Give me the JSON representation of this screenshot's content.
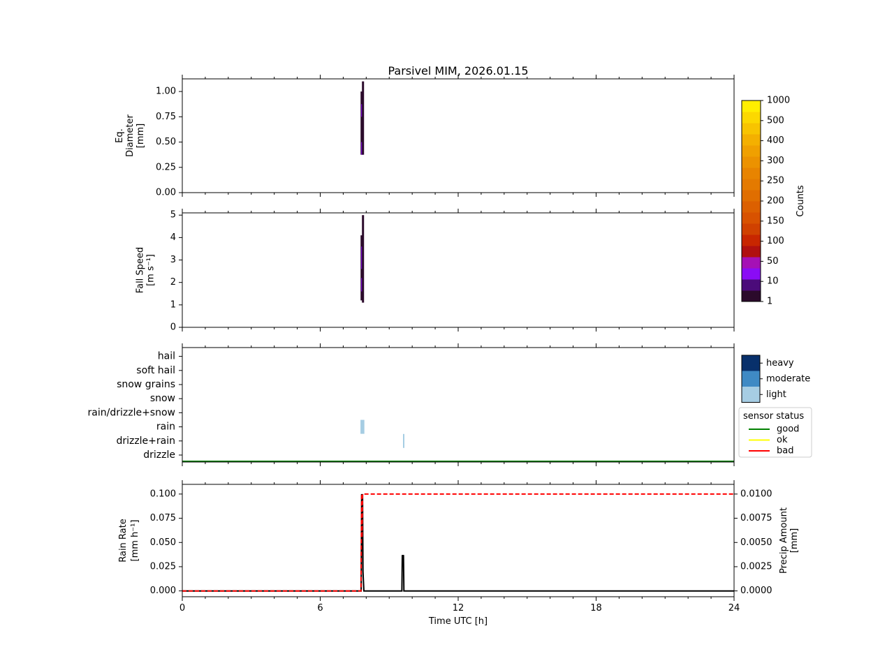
{
  "title": "Parsivel MIM, 2026.01.15",
  "colors": {
    "counts_scale": [
      "#2b0a2b",
      "#4b0b7a",
      "#8a0cf5",
      "#a511b5",
      "#b01010",
      "#c82600",
      "#d04100",
      "#d85200",
      "#dc6000",
      "#e06e00",
      "#e47a00",
      "#e88400",
      "#ec9200",
      "#f0a000",
      "#f4b000",
      "#f8c400",
      "#fcd800",
      "#ffee00"
    ],
    "intensity": {
      "light": "#a6cde3",
      "moderate": "#3f8ac4",
      "heavy": "#08306b"
    },
    "status": {
      "good": "#008000",
      "ok": "#ffff00",
      "bad": "#ff0000"
    },
    "rain_rate_line": "#000000",
    "precip_amount_line": "#ff0000"
  },
  "chart_data": [
    {
      "type": "heatmap",
      "panel": "diameter",
      "ylabel": [
        "Eq.",
        "Diameter",
        "[mm]"
      ],
      "ylim": [
        0,
        1.125
      ],
      "yticks": [
        0.0,
        0.25,
        0.5,
        0.75,
        1.0
      ],
      "ytick_labels": [
        "0.00",
        "0.25",
        "0.50",
        "0.75",
        "1.00"
      ],
      "xlim": [
        0,
        24
      ],
      "cells": [
        {
          "x": 7.8,
          "y0": 0.375,
          "y1": 1.0,
          "count": 1
        },
        {
          "x": 7.83,
          "y0": 0.375,
          "y1": 0.5,
          "count": 10
        },
        {
          "x": 7.83,
          "y0": 0.5,
          "y1": 0.75,
          "count": 5
        },
        {
          "x": 7.83,
          "y0": 0.75,
          "y1": 0.875,
          "count": 10
        },
        {
          "x": 7.86,
          "y0": 0.375,
          "y1": 1.1,
          "count": 1
        }
      ]
    },
    {
      "type": "heatmap",
      "panel": "fall_speed",
      "ylabel": [
        "Fall Speed",
        "[m s⁻¹]"
      ],
      "ylim": [
        0,
        5.1
      ],
      "yticks": [
        0,
        1,
        2,
        3,
        4,
        5
      ],
      "ytick_labels": [
        "0",
        "1",
        "2",
        "3",
        "4",
        "5"
      ],
      "xlim": [
        0,
        24
      ],
      "cells": [
        {
          "x": 7.8,
          "y0": 1.2,
          "y1": 4.1,
          "count": 1
        },
        {
          "x": 7.83,
          "y0": 1.6,
          "y1": 2.2,
          "count": 10
        },
        {
          "x": 7.83,
          "y0": 2.2,
          "y1": 2.6,
          "count": 5
        },
        {
          "x": 7.83,
          "y0": 2.6,
          "y1": 3.6,
          "count": 10
        },
        {
          "x": 7.86,
          "y0": 1.1,
          "y1": 5.0,
          "count": 1
        }
      ]
    },
    {
      "type": "heatmap",
      "panel": "precip_type",
      "categories": [
        "drizzle",
        "drizzle+rain",
        "rain",
        "rain/drizzle+snow",
        "snow",
        "snow grains",
        "soft hail",
        "hail"
      ],
      "xlim": [
        0,
        24
      ],
      "events": [
        {
          "category": "rain",
          "x0": 7.75,
          "x1": 7.92,
          "intensity": "light"
        },
        {
          "category": "drizzle+rain",
          "x0": 9.6,
          "x1": 9.65,
          "intensity": "light"
        }
      ],
      "sensor_status": [
        {
          "x0": 0,
          "x1": 24,
          "status": "good"
        }
      ]
    },
    {
      "type": "line",
      "panel": "rain",
      "xlabel": "Time UTC [h]",
      "xlim": [
        0,
        24
      ],
      "xticks": [
        0,
        6,
        12,
        18,
        24
      ],
      "xtick_labels": [
        "0",
        "6",
        "12",
        "18",
        "24"
      ],
      "ylabel": [
        "Rain Rate",
        "[mm h⁻¹]"
      ],
      "ylim": [
        -0.006,
        0.11
      ],
      "yticks": [
        0.0,
        0.025,
        0.05,
        0.075,
        0.1
      ],
      "ytick_labels": [
        "0.000",
        "0.025",
        "0.050",
        "0.075",
        "0.100"
      ],
      "y2label": [
        "Precip Amount",
        "[mm]"
      ],
      "y2lim": [
        -0.0006,
        0.011
      ],
      "y2ticks": [
        0.0,
        0.0025,
        0.005,
        0.0075,
        0.01
      ],
      "y2tick_labels": [
        "0.0000",
        "0.0025",
        "0.0050",
        "0.0075",
        "0.0100"
      ],
      "series": [
        {
          "axis": "left",
          "style": "solid",
          "x": [
            0,
            7.78,
            7.8,
            7.82,
            7.84,
            7.86,
            7.9,
            9.55,
            9.57,
            9.6,
            9.62,
            9.64,
            24
          ],
          "y": [
            0,
            0,
            0.1,
            0.05,
            0.1,
            0.02,
            0,
            0,
            0.037,
            0.035,
            0.037,
            0,
            0
          ]
        },
        {
          "axis": "right",
          "style": "dashed",
          "x": [
            0,
            7.77,
            7.8,
            7.82,
            7.84,
            7.86,
            24
          ],
          "y": [
            0,
            0,
            0.01,
            0.0055,
            0.01,
            0.01,
            0.01
          ]
        }
      ]
    }
  ],
  "colorbar_counts": {
    "label": "Counts",
    "ticks": [
      "1",
      "10",
      "50",
      "100",
      "150",
      "200",
      "250",
      "300",
      "400",
      "500",
      "1000"
    ]
  },
  "legend_intensity": {
    "items": [
      "heavy",
      "moderate",
      "light"
    ]
  },
  "legend_status": {
    "title": "sensor status",
    "items": [
      "good",
      "ok",
      "bad"
    ]
  }
}
